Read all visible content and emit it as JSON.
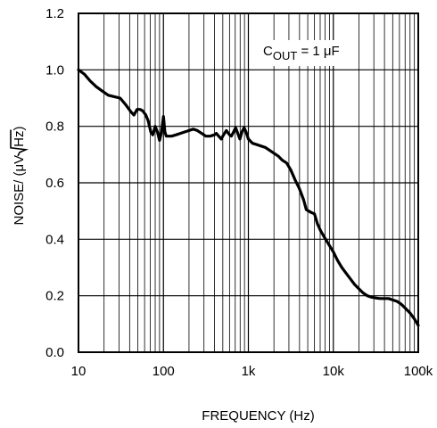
{
  "chart_data": {
    "type": "line",
    "title": "",
    "xlabel": "FREQUENCY (Hz)",
    "ylabel": {
      "prefix": "NOISE/ (μV",
      "radicand": "Hz",
      "suffix": ")"
    },
    "x_scale": "log",
    "xlim": [
      10,
      100000
    ],
    "ylim": [
      0,
      1.2
    ],
    "x_ticks": [
      {
        "value": 10,
        "label": "10"
      },
      {
        "value": 100,
        "label": "100"
      },
      {
        "value": 1000,
        "label": "1k"
      },
      {
        "value": 10000,
        "label": "10k"
      },
      {
        "value": 100000,
        "label": "100k"
      }
    ],
    "y_ticks": [
      {
        "value": 0,
        "label": "0.0"
      },
      {
        "value": 0.2,
        "label": "0.2"
      },
      {
        "value": 0.4,
        "label": "0.4"
      },
      {
        "value": 0.6,
        "label": "0.6"
      },
      {
        "value": 0.8,
        "label": "0.8"
      },
      {
        "value": 1.0,
        "label": "1.0"
      },
      {
        "value": 1.2,
        "label": "1.2"
      }
    ],
    "grid": true,
    "annotation": {
      "main": "C",
      "sub": "OUT",
      "rest": " = 1 μF"
    },
    "series": [
      {
        "color": "#000000",
        "points": [
          [
            10,
            1.0
          ],
          [
            11.7,
            0.985
          ],
          [
            13.8,
            0.96
          ],
          [
            16.2,
            0.94
          ],
          [
            19.0,
            0.925
          ],
          [
            22.4,
            0.91
          ],
          [
            26.3,
            0.905
          ],
          [
            30.9,
            0.9
          ],
          [
            36.3,
            0.875
          ],
          [
            41.7,
            0.85
          ],
          [
            45,
            0.84
          ],
          [
            49,
            0.86
          ],
          [
            53,
            0.86
          ],
          [
            57,
            0.855
          ],
          [
            62,
            0.84
          ],
          [
            66,
            0.82
          ],
          [
            71,
            0.78
          ],
          [
            75,
            0.77
          ],
          [
            80,
            0.8
          ],
          [
            85,
            0.78
          ],
          [
            90,
            0.75
          ],
          [
            95,
            0.78
          ],
          [
            100,
            0.835
          ],
          [
            104,
            0.78
          ],
          [
            108,
            0.765
          ],
          [
            115,
            0.765
          ],
          [
            125,
            0.765
          ],
          [
            141,
            0.77
          ],
          [
            158,
            0.775
          ],
          [
            178,
            0.78
          ],
          [
            200,
            0.785
          ],
          [
            224,
            0.79
          ],
          [
            251,
            0.785
          ],
          [
            282,
            0.775
          ],
          [
            316,
            0.765
          ],
          [
            355,
            0.765
          ],
          [
            398,
            0.77
          ],
          [
            420,
            0.775
          ],
          [
            447,
            0.765
          ],
          [
            480,
            0.755
          ],
          [
            500,
            0.765
          ],
          [
            550,
            0.785
          ],
          [
            600,
            0.77
          ],
          [
            630,
            0.765
          ],
          [
            670,
            0.78
          ],
          [
            708,
            0.795
          ],
          [
            750,
            0.775
          ],
          [
            794,
            0.755
          ],
          [
            840,
            0.78
          ],
          [
            891,
            0.795
          ],
          [
            940,
            0.78
          ],
          [
            1000,
            0.755
          ],
          [
            1120,
            0.74
          ],
          [
            1259,
            0.735
          ],
          [
            1413,
            0.73
          ],
          [
            1585,
            0.725
          ],
          [
            1778,
            0.715
          ],
          [
            1995,
            0.705
          ],
          [
            2239,
            0.695
          ],
          [
            2512,
            0.68
          ],
          [
            2818,
            0.67
          ],
          [
            3162,
            0.645
          ],
          [
            3548,
            0.61
          ],
          [
            3981,
            0.58
          ],
          [
            4467,
            0.54
          ],
          [
            4800,
            0.505
          ],
          [
            5500,
            0.495
          ],
          [
            6000,
            0.49
          ],
          [
            6500,
            0.455
          ],
          [
            7079,
            0.43
          ],
          [
            7943,
            0.405
          ],
          [
            8913,
            0.38
          ],
          [
            10000,
            0.355
          ],
          [
            11220,
            0.325
          ],
          [
            12589,
            0.3
          ],
          [
            14125,
            0.28
          ],
          [
            15849,
            0.26
          ],
          [
            17783,
            0.24
          ],
          [
            19953,
            0.225
          ],
          [
            22387,
            0.21
          ],
          [
            25119,
            0.2
          ],
          [
            28184,
            0.195
          ],
          [
            31623,
            0.192
          ],
          [
            35481,
            0.19
          ],
          [
            39811,
            0.19
          ],
          [
            44668,
            0.19
          ],
          [
            50119,
            0.185
          ],
          [
            56234,
            0.18
          ],
          [
            63096,
            0.17
          ],
          [
            70795,
            0.155
          ],
          [
            79433,
            0.14
          ],
          [
            89125,
            0.12
          ],
          [
            100000,
            0.095
          ]
        ]
      }
    ]
  }
}
